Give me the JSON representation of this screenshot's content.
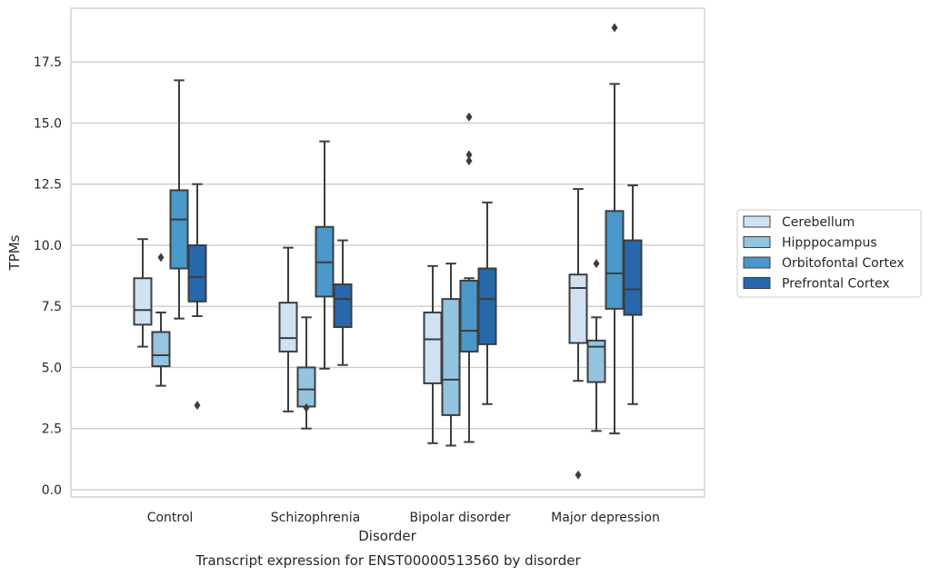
{
  "chart_data": {
    "type": "box",
    "title": "Transcript expression for ENST00000513560 by disorder",
    "xlabel": "Disorder",
    "ylabel": "TPMs",
    "ylim": [
      -0.3,
      19.7
    ],
    "yticks": [
      "0.0",
      "2.5",
      "5.0",
      "7.5",
      "10.0",
      "12.5",
      "15.0",
      "17.5"
    ],
    "grid": "horizontal",
    "legend_position": "right",
    "categories": [
      "Control",
      "Schizophrenia",
      "Bipolar disorder",
      "Major depression"
    ],
    "series": [
      {
        "name": "Cerebellum",
        "color": "#d0e1f2",
        "boxes": [
          {
            "whisker_low": 5.85,
            "q1": 6.75,
            "median": 7.35,
            "q3": 8.65,
            "whisker_high": 10.25,
            "outliers": []
          },
          {
            "whisker_low": 3.2,
            "q1": 5.65,
            "median": 6.2,
            "q3": 7.65,
            "whisker_high": 9.9,
            "outliers": []
          },
          {
            "whisker_low": 1.9,
            "q1": 4.35,
            "median": 6.15,
            "q3": 7.25,
            "whisker_high": 9.15,
            "outliers": []
          },
          {
            "whisker_low": 4.45,
            "q1": 6.0,
            "median": 8.25,
            "q3": 8.8,
            "whisker_high": 12.3,
            "outliers": [
              0.6
            ]
          }
        ]
      },
      {
        "name": "Hipppocampus",
        "color": "#94c4df",
        "boxes": [
          {
            "whisker_low": 4.25,
            "q1": 5.05,
            "median": 5.5,
            "q3": 6.45,
            "whisker_high": 7.25,
            "outliers": [
              9.5
            ]
          },
          {
            "whisker_low": 2.5,
            "q1": 3.4,
            "median": 4.1,
            "q3": 5.0,
            "whisker_high": 7.05,
            "outliers": [
              3.35
            ]
          },
          {
            "whisker_low": 1.8,
            "q1": 3.05,
            "median": 4.5,
            "q3": 7.8,
            "whisker_high": 9.25,
            "outliers": []
          },
          {
            "whisker_low": 2.4,
            "q1": 4.4,
            "median": 5.85,
            "q3": 6.1,
            "whisker_high": 7.05,
            "outliers": [
              9.25
            ]
          }
        ]
      },
      {
        "name": "Orbitofontal Cortex",
        "color": "#4a98c9",
        "boxes": [
          {
            "whisker_low": 7.0,
            "q1": 9.05,
            "median": 11.05,
            "q3": 12.25,
            "whisker_high": 16.75,
            "outliers": []
          },
          {
            "whisker_low": 4.95,
            "q1": 7.9,
            "median": 9.3,
            "q3": 10.75,
            "whisker_high": 14.25,
            "outliers": []
          },
          {
            "whisker_low": 1.95,
            "q1": 5.65,
            "median": 6.5,
            "q3": 8.55,
            "whisker_high": 8.65,
            "outliers": [
              13.45,
              13.7,
              15.25
            ]
          },
          {
            "whisker_low": 2.3,
            "q1": 7.4,
            "median": 8.85,
            "q3": 11.4,
            "whisker_high": 16.6,
            "outliers": [
              18.9
            ]
          }
        ]
      },
      {
        "name": "Prefrontal Cortex",
        "color": "#2767ab",
        "boxes": [
          {
            "whisker_low": 7.1,
            "q1": 7.7,
            "median": 8.7,
            "q3": 10.0,
            "whisker_high": 12.5,
            "outliers": [
              3.45
            ]
          },
          {
            "whisker_low": 5.1,
            "q1": 6.65,
            "median": 7.8,
            "q3": 8.4,
            "whisker_high": 10.2,
            "outliers": []
          },
          {
            "whisker_low": 3.5,
            "q1": 5.95,
            "median": 7.8,
            "q3": 9.05,
            "whisker_high": 11.75,
            "outliers": []
          },
          {
            "whisker_low": 3.5,
            "q1": 7.15,
            "median": 8.2,
            "q3": 10.2,
            "whisker_high": 12.45,
            "outliers": []
          }
        ]
      }
    ]
  }
}
